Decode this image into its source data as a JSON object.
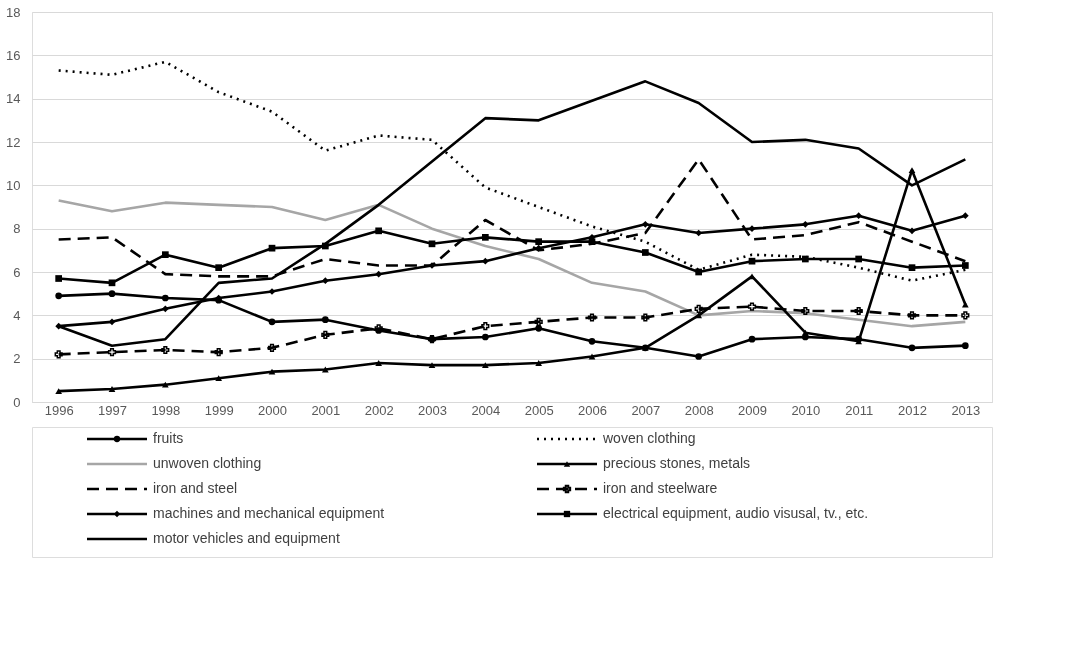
{
  "chart_data": {
    "type": "line",
    "categories": [
      "1996",
      "1997",
      "1998",
      "1999",
      "2000",
      "2001",
      "2002",
      "2003",
      "2004",
      "2005",
      "2006",
      "2007",
      "2008",
      "2009",
      "2010",
      "2011",
      "2012",
      "2013"
    ],
    "ylim": [
      0,
      18
    ],
    "yticks": [
      0,
      2,
      4,
      6,
      8,
      10,
      12,
      14,
      16,
      18
    ],
    "grid": "y",
    "legend": "bottom",
    "series": [
      {
        "name": "fruits",
        "color": "#000000",
        "marker": "circle",
        "line_style": "solid",
        "values": [
          4.9,
          5.0,
          4.8,
          4.7,
          3.7,
          3.8,
          3.3,
          2.9,
          3.0,
          3.4,
          2.8,
          2.5,
          2.1,
          2.9,
          3.0,
          2.9,
          2.5,
          2.6
        ]
      },
      {
        "name": "woven clothing",
        "color": "#000000",
        "marker": "none",
        "line_style": "dotted",
        "values": [
          15.3,
          15.1,
          15.7,
          14.3,
          13.4,
          11.6,
          12.3,
          12.1,
          9.9,
          9.0,
          8.1,
          7.4,
          6.1,
          6.8,
          6.7,
          6.2,
          5.6,
          6.1
        ]
      },
      {
        "name": "unwoven clothing",
        "color": "#a6a6a6",
        "marker": "none",
        "line_style": "solid",
        "values": [
          9.3,
          8.8,
          9.2,
          9.1,
          9.0,
          8.4,
          9.1,
          8.0,
          7.2,
          6.6,
          5.5,
          5.1,
          4.0,
          4.2,
          4.1,
          3.8,
          3.5,
          3.7
        ]
      },
      {
        "name": "precious stones, metals",
        "color": "#000000",
        "marker": "triangle",
        "line_style": "solid",
        "values": [
          0.5,
          0.6,
          0.8,
          1.1,
          1.4,
          1.5,
          1.8,
          1.7,
          1.7,
          1.8,
          2.1,
          2.5,
          4.0,
          5.8,
          3.2,
          2.8,
          10.7,
          4.5
        ]
      },
      {
        "name": "iron and steel",
        "color": "#000000",
        "marker": "none",
        "line_style": "dashed",
        "values": [
          7.5,
          7.6,
          5.9,
          5.8,
          5.8,
          6.6,
          6.3,
          6.3,
          8.4,
          7.0,
          7.3,
          7.8,
          11.2,
          7.5,
          7.7,
          8.3,
          7.4,
          6.5
        ]
      },
      {
        "name": "iron and steelware",
        "color": "#000000",
        "marker": "cross",
        "line_style": "dashed",
        "values": [
          2.2,
          2.3,
          2.4,
          2.3,
          2.5,
          3.1,
          3.4,
          2.9,
          3.5,
          3.7,
          3.9,
          3.9,
          4.3,
          4.4,
          4.2,
          4.2,
          4.0,
          4.0
        ]
      },
      {
        "name": "machines and mechanical equipment",
        "color": "#000000",
        "marker": "diamond",
        "line_style": "solid",
        "values": [
          3.5,
          3.7,
          4.3,
          4.8,
          5.1,
          5.6,
          5.9,
          6.3,
          6.5,
          7.1,
          7.6,
          8.2,
          7.8,
          8.0,
          8.2,
          8.6,
          7.9,
          8.6
        ]
      },
      {
        "name": "electrical equipment, audio visusal, tv., etc.",
        "color": "#000000",
        "marker": "square",
        "line_style": "solid",
        "values": [
          5.7,
          5.5,
          6.8,
          6.2,
          7.1,
          7.2,
          7.9,
          7.3,
          7.6,
          7.4,
          7.4,
          6.9,
          6.0,
          6.5,
          6.6,
          6.6,
          6.2,
          6.3
        ]
      },
      {
        "name": "motor vehicles and equipment",
        "color": "#000000",
        "marker": "none",
        "line_style": "solid",
        "values": [
          3.5,
          2.6,
          2.9,
          5.5,
          5.7,
          7.3,
          9.1,
          11.1,
          13.1,
          13.0,
          13.9,
          14.8,
          13.8,
          12.0,
          12.1,
          11.7,
          10.0,
          11.2
        ]
      }
    ]
  }
}
